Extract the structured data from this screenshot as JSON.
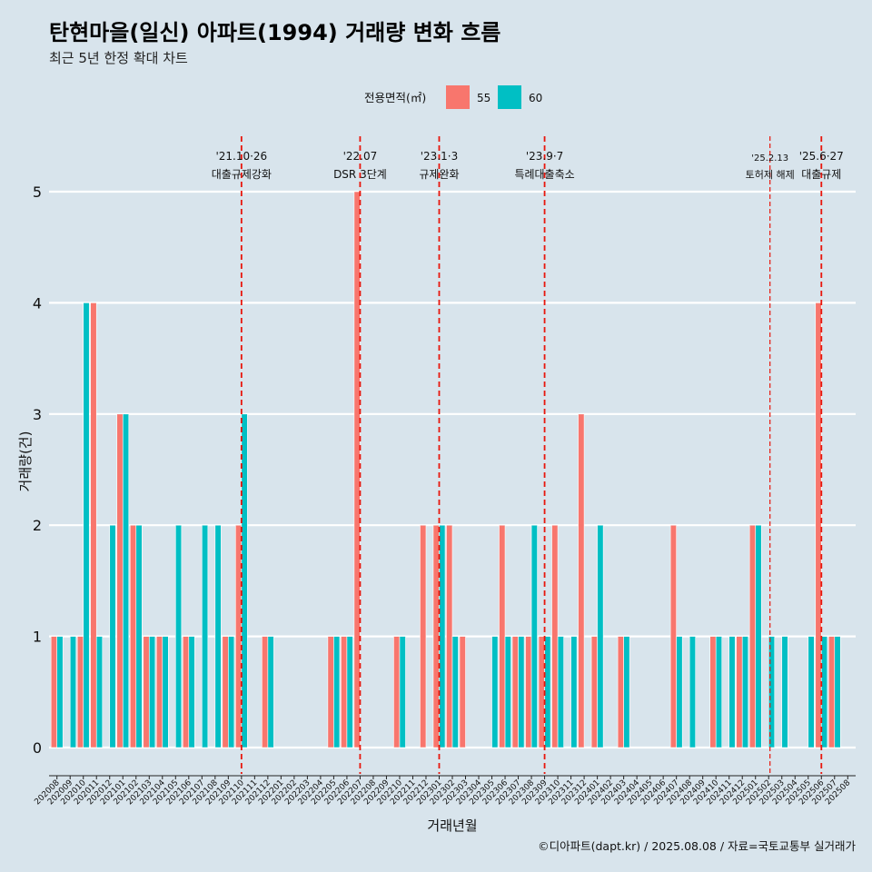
{
  "chart_data": {
    "type": "bar",
    "title": "탄현마을(일신) 아파트(1994) 거래량 변화 흐름",
    "subtitle": "최근 5년 한정 확대 차트",
    "xlabel": "거래년월",
    "ylabel": "거래량(건)",
    "ylim": [
      0,
      5
    ],
    "yticks": [
      0,
      1,
      2,
      3,
      4,
      5
    ],
    "grid": true,
    "legend_title": "전용면적(㎡)",
    "legend_position": "top",
    "caption": "©디아파트(dapt.kr) / 2025.08.08 / 자료=국토교통부 실거래가",
    "categories": [
      "202008",
      "202009",
      "202010",
      "202011",
      "202012",
      "202101",
      "202102",
      "202103",
      "202104",
      "202105",
      "202106",
      "202107",
      "202108",
      "202109",
      "202110",
      "202111",
      "202112",
      "202201",
      "202202",
      "202203",
      "202204",
      "202205",
      "202206",
      "202207",
      "202208",
      "202209",
      "202210",
      "202211",
      "202212",
      "202301",
      "202302",
      "202303",
      "202304",
      "202305",
      "202306",
      "202307",
      "202308",
      "202309",
      "202310",
      "202311",
      "202312",
      "202401",
      "202402",
      "202403",
      "202404",
      "202405",
      "202406",
      "202407",
      "202408",
      "202409",
      "202410",
      "202411",
      "202412",
      "202501",
      "202502",
      "202503",
      "202504",
      "202505",
      "202506",
      "202507",
      "202508"
    ],
    "series": [
      {
        "name": "55",
        "color": "#f8766d",
        "values": [
          1,
          0,
          1,
          4,
          0,
          3,
          2,
          1,
          1,
          0,
          1,
          0,
          0,
          1,
          2,
          0,
          1,
          0,
          0,
          0,
          0,
          1,
          1,
          5,
          0,
          0,
          1,
          0,
          2,
          2,
          2,
          1,
          0,
          0,
          2,
          1,
          1,
          1,
          2,
          0,
          3,
          1,
          0,
          1,
          0,
          0,
          0,
          2,
          0,
          0,
          1,
          0,
          1,
          2,
          0,
          0,
          0,
          0,
          4,
          1,
          0
        ]
      },
      {
        "name": "60",
        "color": "#00bfc4",
        "values": [
          1,
          1,
          4,
          1,
          2,
          3,
          2,
          1,
          1,
          2,
          1,
          2,
          2,
          1,
          3,
          0,
          1,
          0,
          0,
          0,
          0,
          1,
          1,
          0,
          0,
          0,
          1,
          0,
          0,
          2,
          1,
          0,
          0,
          1,
          1,
          1,
          2,
          1,
          1,
          1,
          0,
          2,
          0,
          1,
          0,
          0,
          0,
          1,
          1,
          0,
          1,
          1,
          1,
          2,
          1,
          1,
          0,
          1,
          1,
          1,
          0
        ]
      }
    ],
    "events": [
      {
        "date": "'21.10·26",
        "label": "대출규제강화",
        "at": "202110",
        "style": "major"
      },
      {
        "date": "'22.07",
        "label": "DSR 3단계",
        "at": "202207",
        "style": "major"
      },
      {
        "date": "'23.1·3",
        "label": "규제완화",
        "at": "202301",
        "style": "major"
      },
      {
        "date": "'23.9·7",
        "label": "특례대출축소",
        "at": "202309",
        "style": "major"
      },
      {
        "date": "'25.2.13",
        "label": "토허제 해제",
        "at": "202502",
        "style": "minor"
      },
      {
        "date": "'25.6·27",
        "label": "대출규제",
        "at": "202506",
        "style": "major"
      }
    ]
  }
}
